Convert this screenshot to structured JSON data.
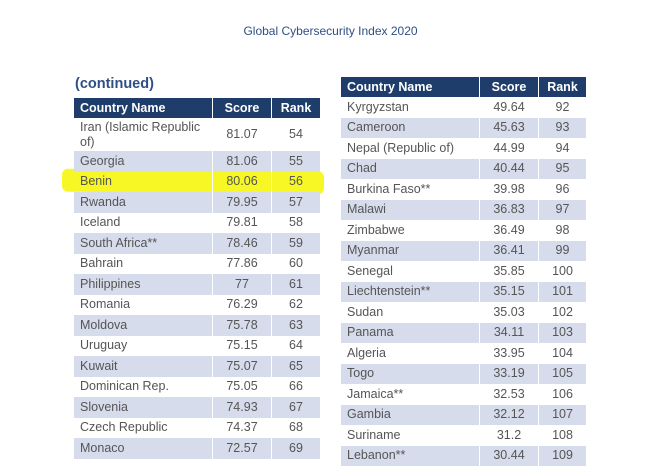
{
  "page_title": "Global Cybersecurity Index 2020",
  "continued_label": "(continued)",
  "columns": [
    "Country Name",
    "Score",
    "Rank"
  ],
  "left_table": [
    {
      "country": "Iran (Islamic Republic of)",
      "score": "81.07",
      "rank": "54"
    },
    {
      "country": "Georgia",
      "score": "81.06",
      "rank": "55"
    },
    {
      "country": "Benin",
      "score": "80.06",
      "rank": "56"
    },
    {
      "country": "Rwanda",
      "score": "79.95",
      "rank": "57"
    },
    {
      "country": "Iceland",
      "score": "79.81",
      "rank": "58"
    },
    {
      "country": "South Africa**",
      "score": "78.46",
      "rank": "59"
    },
    {
      "country": "Bahrain",
      "score": "77.86",
      "rank": "60"
    },
    {
      "country": "Philippines",
      "score": "77",
      "rank": "61"
    },
    {
      "country": "Romania",
      "score": "76.29",
      "rank": "62"
    },
    {
      "country": "Moldova",
      "score": "75.78",
      "rank": "63"
    },
    {
      "country": "Uruguay",
      "score": "75.15",
      "rank": "64"
    },
    {
      "country": "Kuwait",
      "score": "75.07",
      "rank": "65"
    },
    {
      "country": "Dominican Rep.",
      "score": "75.05",
      "rank": "66"
    },
    {
      "country": "Slovenia",
      "score": "74.93",
      "rank": "67"
    },
    {
      "country": "Czech Republic",
      "score": "74.37",
      "rank": "68"
    },
    {
      "country": "Monaco",
      "score": "72.57",
      "rank": "69"
    }
  ],
  "right_table": [
    {
      "country": "Kyrgyzstan",
      "score": "49.64",
      "rank": "92"
    },
    {
      "country": "Cameroon",
      "score": "45.63",
      "rank": "93"
    },
    {
      "country": "Nepal (Republic of)",
      "score": "44.99",
      "rank": "94"
    },
    {
      "country": "Chad",
      "score": "40.44",
      "rank": "95"
    },
    {
      "country": "Burkina Faso**",
      "score": "39.98",
      "rank": "96"
    },
    {
      "country": "Malawi",
      "score": "36.83",
      "rank": "97"
    },
    {
      "country": "Zimbabwe",
      "score": "36.49",
      "rank": "98"
    },
    {
      "country": "Myanmar",
      "score": "36.41",
      "rank": "99"
    },
    {
      "country": "Senegal",
      "score": "35.85",
      "rank": "100"
    },
    {
      "country": "Liechtenstein**",
      "score": "35.15",
      "rank": "101"
    },
    {
      "country": "Sudan",
      "score": "35.03",
      "rank": "102"
    },
    {
      "country": "Panama",
      "score": "34.11",
      "rank": "103"
    },
    {
      "country": "Algeria",
      "score": "33.95",
      "rank": "104"
    },
    {
      "country": "Togo",
      "score": "33.19",
      "rank": "105"
    },
    {
      "country": "Jamaica**",
      "score": "32.53",
      "rank": "106"
    },
    {
      "country": "Gambia",
      "score": "32.12",
      "rank": "107"
    },
    {
      "country": "Suriname",
      "score": "31.2",
      "rank": "108"
    },
    {
      "country": "Lebanon**",
      "score": "30.44",
      "rank": "109"
    }
  ],
  "highlighted_country": "Benin",
  "colors": {
    "header_bg": "#1f3d6b",
    "row_alt": "#d6dceb",
    "highlight": "#f6f600",
    "title": "#2e4f86"
  }
}
